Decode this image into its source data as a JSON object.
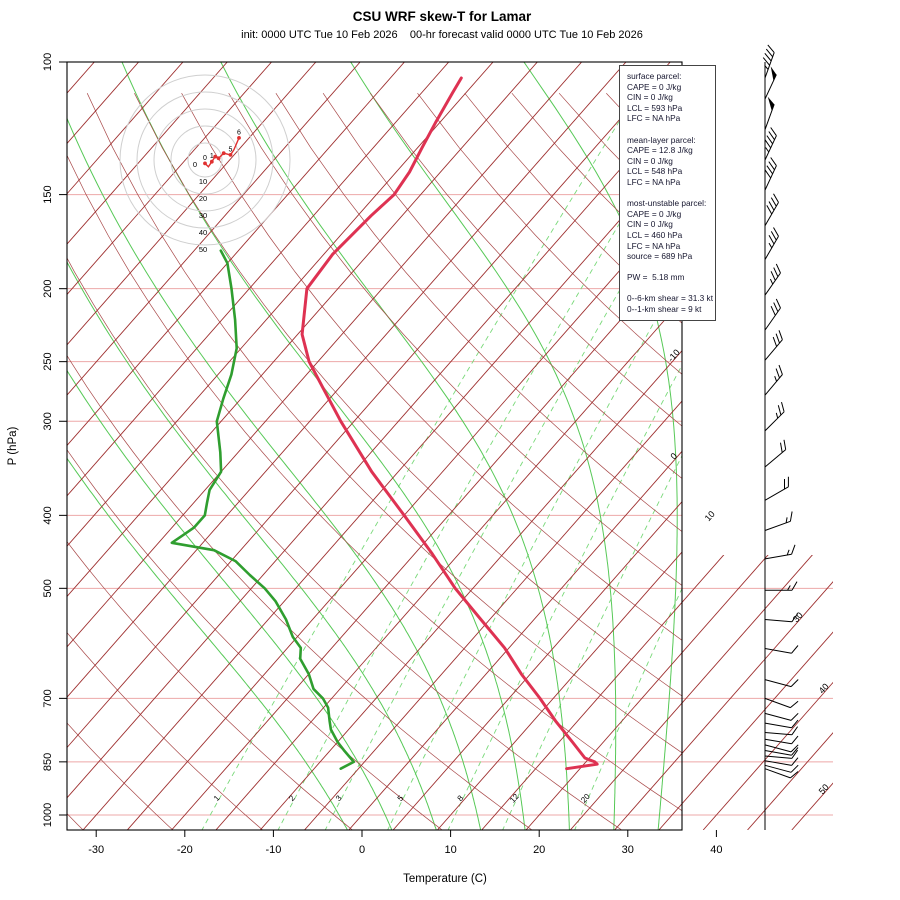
{
  "header": {
    "title": "CSU WRF skew-T for Lamar",
    "subtitle": "init: 0000 UTC Tue 10 Feb 2026    00-hr forecast valid 0000 UTC Tue 10 Feb 2026"
  },
  "axes": {
    "x_label": "Temperature (C)",
    "y_label": "P (hPa)",
    "pressure_ticks": [
      100,
      150,
      200,
      250,
      300,
      400,
      500,
      700,
      850,
      1000
    ],
    "temp_ticks": [
      -30,
      -20,
      -10,
      0,
      10,
      20,
      30,
      40
    ]
  },
  "info_box": {
    "sections": [
      {
        "lines": [
          "surface parcel:",
          "CAPE = 0 J/kg",
          "CIN = 0 J/kg",
          "LCL = 593 hPa",
          "LFC = NA hPa"
        ]
      },
      {
        "lines": [
          "mean-layer parcel:",
          "CAPE = 12.8 J/kg",
          "CIN = 0 J/kg",
          "LCL = 548 hPa",
          "LFC = NA hPa"
        ]
      },
      {
        "lines": [
          "most-unstable parcel:",
          "CAPE = 0 J/kg",
          "CIN = 0 J/kg",
          "LCL = 460 hPa",
          "LFC = NA hPa",
          "source = 689 hPa"
        ]
      },
      {
        "lines": [
          "PW =  5.18 mm"
        ]
      },
      {
        "lines": [
          "0--6-km shear = 31.3 kt",
          "0--1-km shear = 9 kt"
        ]
      }
    ]
  },
  "colors": {
    "temperature": "#de3252",
    "dewpoint": "#2f9e2f",
    "isotherm": "#9e2f2f",
    "dry_adiabat": "#a84848",
    "moist_adiabat": "#57c957",
    "mixing_ratio": "#79d979",
    "mixing_label": "#3db83d",
    "isobar": "#eda8a8",
    "barb": "#000000",
    "hodo_ring": "#cfcfcf",
    "hodo_trace": "#e03030"
  },
  "chart_data": {
    "type": "line",
    "subtype": "skew-T log-p sounding",
    "title": "CSU WRF skew-T for Lamar",
    "xlabel": "Temperature (C)",
    "ylabel": "P (hPa)",
    "x_ticks": [
      -30,
      -20,
      -10,
      0,
      10,
      20,
      30,
      40
    ],
    "pressure_ticks": [
      100,
      150,
      200,
      250,
      300,
      400,
      500,
      700,
      850,
      1000
    ],
    "pressure_range": [
      100,
      1050
    ],
    "isotherm_step_C": 5,
    "isotherm_right_labels": [
      -10,
      0,
      10,
      30,
      40,
      50
    ],
    "mixing_ratio_lines_g_kg": [
      1,
      2,
      3,
      5,
      8,
      12,
      20
    ],
    "moist_adiabat_starts_C": [
      0,
      5,
      10,
      15,
      20,
      25,
      30,
      35,
      40
    ],
    "series": [
      {
        "name": "temperature",
        "pressure_hPa": [
          868,
          856,
          850,
          840,
          800,
          750,
          700,
          650,
          600,
          550,
          500,
          450,
          400,
          350,
          300,
          270,
          250,
          230,
          200,
          180,
          160,
          150,
          140,
          130,
          120,
          110,
          105
        ],
        "value_C": [
          18.5,
          21.5,
          21.0,
          19.5,
          16.5,
          12.5,
          8.5,
          4.0,
          -0.5,
          -6.0,
          -12.0,
          -18.0,
          -25.0,
          -33.0,
          -41.5,
          -47.0,
          -51.0,
          -54.5,
          -58.5,
          -59.0,
          -58.5,
          -58.0,
          -58.5,
          -59.5,
          -60.5,
          -61.5,
          -62.0
        ]
      },
      {
        "name": "dewpoint",
        "pressure_hPa": [
          868,
          850,
          820,
          800,
          770,
          750,
          720,
          700,
          680,
          650,
          620,
          600,
          580,
          550,
          520,
          500,
          480,
          460,
          445,
          435,
          425,
          415,
          400,
          385,
          370,
          350,
          330,
          300,
          280,
          260,
          240,
          220,
          200,
          185,
          178
        ],
        "value_C": [
          -7.0,
          -6.2,
          -8.5,
          -10.0,
          -12.0,
          -13.0,
          -14.5,
          -16.0,
          -18.0,
          -20.0,
          -22.5,
          -23.5,
          -25.5,
          -28.0,
          -31.0,
          -33.5,
          -36.5,
          -39.5,
          -43.0,
          -48.5,
          -48.0,
          -47.5,
          -47.5,
          -48.5,
          -49.5,
          -50.0,
          -52.0,
          -55.5,
          -57.0,
          -58.5,
          -60.5,
          -63.5,
          -67.0,
          -70.0,
          -72.0
        ]
      }
    ],
    "winds_kt": [
      [
        105,
        20,
        45
      ],
      [
        112,
        25,
        50
      ],
      [
        123,
        20,
        50
      ],
      [
        135,
        25,
        45
      ],
      [
        148,
        25,
        40
      ],
      [
        165,
        30,
        40
      ],
      [
        183,
        30,
        35
      ],
      [
        204,
        35,
        35
      ],
      [
        227,
        35,
        30
      ],
      [
        249,
        40,
        30
      ],
      [
        277,
        40,
        25
      ],
      [
        309,
        45,
        25
      ],
      [
        345,
        50,
        20
      ],
      [
        382,
        60,
        20
      ],
      [
        419,
        70,
        15
      ],
      [
        457,
        80,
        15
      ],
      [
        503,
        90,
        15
      ],
      [
        550,
        95,
        10
      ],
      [
        601,
        100,
        10
      ],
      [
        661,
        105,
        10
      ],
      [
        700,
        110,
        10
      ],
      [
        733,
        105,
        10
      ],
      [
        755,
        100,
        10
      ],
      [
        777,
        95,
        10
      ],
      [
        793,
        100,
        10
      ],
      [
        807,
        105,
        10
      ],
      [
        821,
        100,
        9
      ],
      [
        835,
        95,
        9
      ],
      [
        847,
        100,
        9
      ],
      [
        859,
        105,
        9
      ],
      [
        868,
        110,
        9
      ]
    ],
    "hodograph": {
      "unit": "kt",
      "ring_labels": [
        10,
        20,
        30,
        40,
        50
      ],
      "trace_uv_kt": [
        [
          0,
          -2
        ],
        [
          2,
          -4
        ],
        [
          4,
          -1
        ],
        [
          6,
          2
        ],
        [
          8,
          1
        ],
        [
          11,
          4
        ],
        [
          15,
          3
        ],
        [
          17,
          6
        ],
        [
          20,
          13
        ]
      ],
      "markers": [
        {
          "km": "0",
          "u": 0,
          "v": -2
        },
        {
          "km": "1",
          "u": 4,
          "v": -1
        },
        {
          "km": "2",
          "u": 6,
          "v": 2
        },
        {
          "km": "3",
          "u": 8,
          "v": 1
        },
        {
          "km": "4",
          "u": 11,
          "v": 4
        },
        {
          "km": "5",
          "u": 15,
          "v": 3
        },
        {
          "km": "6",
          "u": 20,
          "v": 13
        }
      ],
      "labeled_markers": [
        "0",
        "1",
        "5",
        "6"
      ]
    }
  }
}
